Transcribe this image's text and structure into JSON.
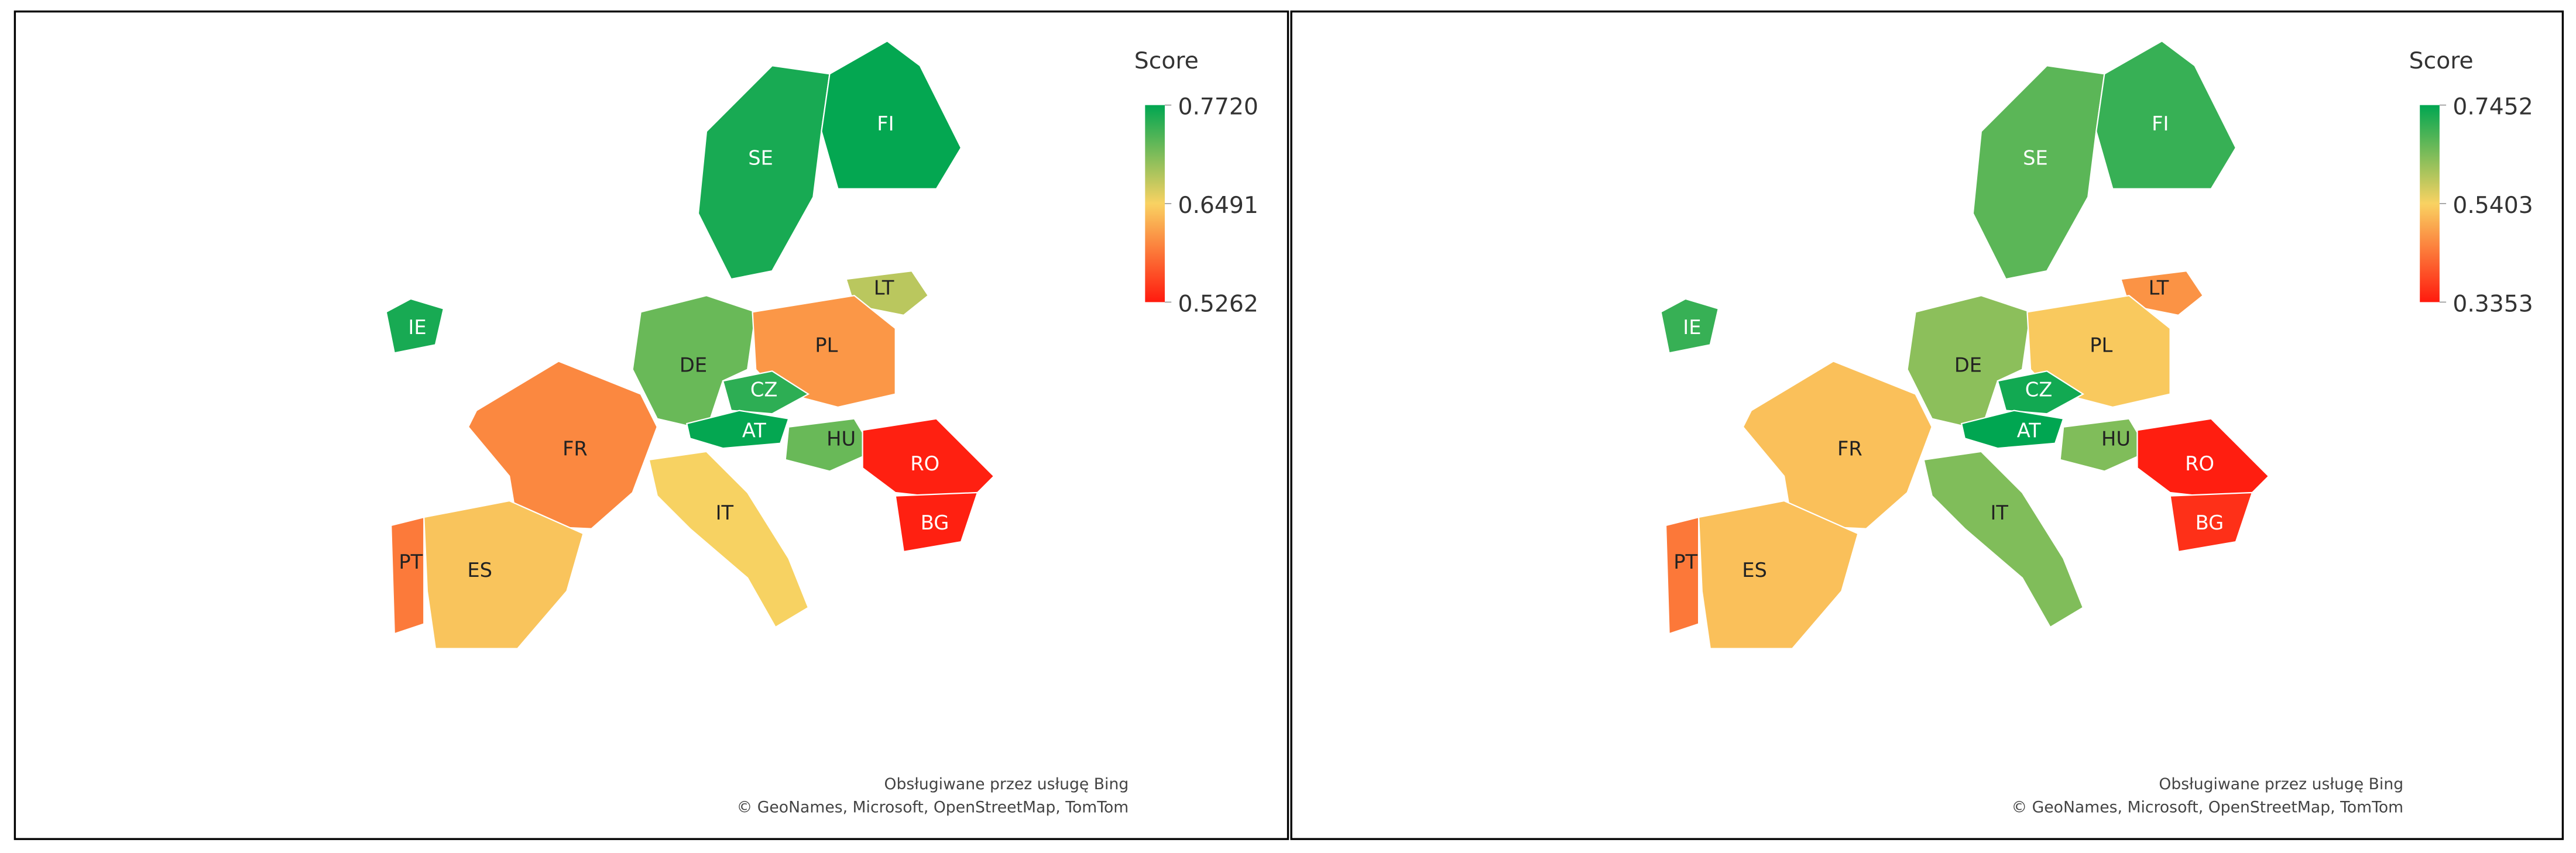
{
  "maps": [
    {
      "legend": {
        "title": "Score",
        "ticks": [
          {
            "value": 0.772,
            "label": "0.7720"
          },
          {
            "value": 0.6491,
            "label": "0.6491"
          },
          {
            "value": 0.5262,
            "label": "0.5262"
          }
        ]
      },
      "colors": [
        "#00a651",
        "#f9d262",
        "#ff1a0e"
      ],
      "regions": [
        {
          "label": "SE",
          "value": 0.76
        },
        {
          "label": "FI",
          "value": 0.77
        },
        {
          "label": "LT",
          "value": 0.68
        },
        {
          "label": "IE",
          "value": 0.76
        },
        {
          "label": "DE",
          "value": 0.72
        },
        {
          "label": "PL",
          "value": 0.61
        },
        {
          "label": "CZ",
          "value": 0.75
        },
        {
          "label": "FR",
          "value": 0.6
        },
        {
          "label": "AT",
          "value": 0.77
        },
        {
          "label": "HU",
          "value": 0.72
        },
        {
          "label": "RO",
          "value": 0.53
        },
        {
          "label": "IT",
          "value": 0.65
        },
        {
          "label": "BG",
          "value": 0.53
        },
        {
          "label": "PT",
          "value": 0.59
        },
        {
          "label": "ES",
          "value": 0.64
        }
      ],
      "attribution": [
        "Obsługiwane przez usługę Bing",
        "© GeoNames, Microsoft, OpenStreetMap, TomTom"
      ]
    },
    {
      "legend": {
        "title": "Score",
        "ticks": [
          {
            "value": 0.7452,
            "label": "0.7452"
          },
          {
            "value": 0.5403,
            "label": "0.5403"
          },
          {
            "value": 0.3353,
            "label": "0.3353"
          }
        ]
      },
      "colors": [
        "#00a651",
        "#f9d262",
        "#ff1a0e"
      ],
      "regions": [
        {
          "label": "SE",
          "value": 0.67
        },
        {
          "label": "FI",
          "value": 0.7
        },
        {
          "label": "LT",
          "value": 0.47
        },
        {
          "label": "IE",
          "value": 0.7
        },
        {
          "label": "DE",
          "value": 0.63
        },
        {
          "label": "PL",
          "value": 0.53
        },
        {
          "label": "CZ",
          "value": 0.73
        },
        {
          "label": "FR",
          "value": 0.52
        },
        {
          "label": "AT",
          "value": 0.745
        },
        {
          "label": "HU",
          "value": 0.64
        },
        {
          "label": "RO",
          "value": 0.34
        },
        {
          "label": "IT",
          "value": 0.64
        },
        {
          "label": "BG",
          "value": 0.36
        },
        {
          "label": "PT",
          "value": 0.44
        },
        {
          "label": "ES",
          "value": 0.52
        }
      ],
      "attribution": [
        "Obsługiwane przez usługę Bing",
        "© GeoNames, Microsoft, OpenStreetMap, TomTom"
      ]
    }
  ]
}
